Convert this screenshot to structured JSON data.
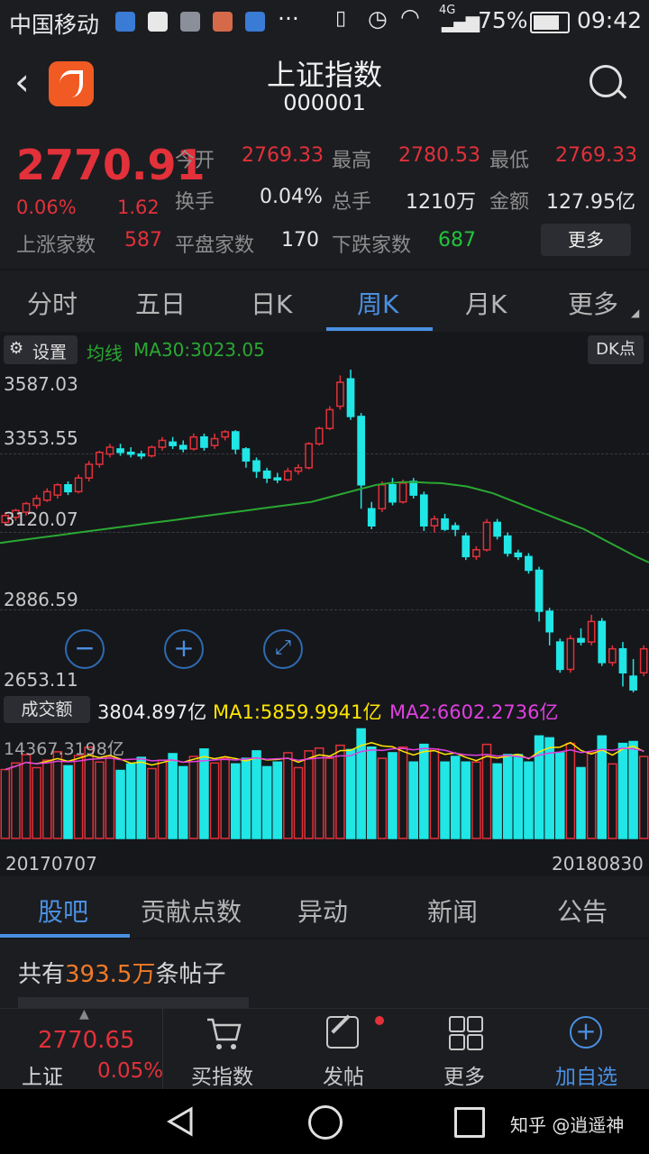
{
  "status": {
    "carrier": "中国移动",
    "battery": "75%",
    "time": "09:42",
    "network": "4G"
  },
  "header": {
    "title": "上证指数",
    "code": "000001"
  },
  "quote": {
    "price": "2770.91",
    "pct": "0.06%",
    "chg": "1.62",
    "open_lbl": "今开",
    "open": "2769.33",
    "high_lbl": "最高",
    "high": "2780.53",
    "low_lbl": "最低",
    "low": "2769.33",
    "turn_lbl": "换手",
    "turn": "0.04%",
    "hand_lbl": "总手",
    "hand": "1210万",
    "amt_lbl": "金额",
    "amt": "127.95亿",
    "up_lbl": "上涨家数",
    "up": "587",
    "flat_lbl": "平盘家数",
    "flat": "170",
    "down_lbl": "下跌家数",
    "down": "687",
    "more": "更多"
  },
  "tabs": [
    "分时",
    "五日",
    "日K",
    "周K",
    "月K",
    "更多"
  ],
  "chart_header": {
    "settings": "设置",
    "ma_label": "均线",
    "ma": "MA30:3023.05",
    "dk": "DK点"
  },
  "price_axis": [
    "3587.03",
    "3353.55",
    "3120.07",
    "2886.59",
    "2653.11"
  ],
  "volume_header": {
    "label": "成交额",
    "value": "3804.897亿",
    "ma1": "MA1:5859.9941亿",
    "ma2": "MA2:6602.2736亿",
    "max": "14367.3198亿"
  },
  "date_range": {
    "start": "20170707",
    "end": "20180830"
  },
  "bottom_tabs": [
    "股吧",
    "贡献点数",
    "异动",
    "新闻",
    "公告"
  ],
  "posts": {
    "prefix": "共有",
    "count": "393.5万",
    "suffix": "条帖子"
  },
  "toolbar": {
    "price": "2770.65",
    "name": "上证",
    "pct": "0.05%",
    "buy": "买指数",
    "post": "发帖",
    "more": "更多",
    "add": "加自选"
  },
  "watermark": "知乎 @逍遥神",
  "colors": {
    "up": "#e2313a",
    "down": "#21e6e6",
    "ma30": "#2aa832",
    "ma1": "#ffe600",
    "ma2": "#e040e0",
    "accent": "#4a90e2"
  },
  "chart_data": {
    "type": "candlestick",
    "ylim": [
      2653.11,
      3587.03
    ],
    "ma_line": [
      3080,
      3085,
      3090,
      3095,
      3100,
      3105,
      3110,
      3115,
      3120,
      3125,
      3130,
      3135,
      3140,
      3145,
      3150,
      3155,
      3160,
      3165,
      3170,
      3175,
      3180,
      3185,
      3190,
      3195,
      3200,
      3210,
      3220,
      3230,
      3240,
      3250,
      3255,
      3258,
      3258,
      3256,
      3255,
      3250,
      3245,
      3235,
      3225,
      3210,
      3195,
      3180,
      3165,
      3150,
      3135,
      3120,
      3100,
      3080,
      3060,
      3040,
      3023
    ],
    "candles": [
      [
        3140,
        3160,
        3170,
        3130
      ],
      [
        3155,
        3175,
        3180,
        3145
      ],
      [
        3170,
        3195,
        3200,
        3160
      ],
      [
        3190,
        3210,
        3220,
        3180
      ],
      [
        3205,
        3230,
        3240,
        3200
      ],
      [
        3220,
        3250,
        3255,
        3210
      ],
      [
        3250,
        3230,
        3260,
        3220
      ],
      [
        3230,
        3270,
        3280,
        3225
      ],
      [
        3270,
        3310,
        3320,
        3260
      ],
      [
        3310,
        3345,
        3350,
        3300
      ],
      [
        3340,
        3360,
        3370,
        3330
      ],
      [
        3355,
        3345,
        3370,
        3335
      ],
      [
        3345,
        3340,
        3360,
        3330
      ],
      [
        3340,
        3335,
        3350,
        3325
      ],
      [
        3335,
        3360,
        3365,
        3330
      ],
      [
        3360,
        3380,
        3390,
        3350
      ],
      [
        3375,
        3365,
        3390,
        3355
      ],
      [
        3365,
        3355,
        3380,
        3345
      ],
      [
        3355,
        3390,
        3400,
        3350
      ],
      [
        3390,
        3360,
        3400,
        3350
      ],
      [
        3365,
        3385,
        3400,
        3355
      ],
      [
        3390,
        3405,
        3410,
        3380
      ],
      [
        3405,
        3355,
        3410,
        3340
      ],
      [
        3355,
        3320,
        3360,
        3300
      ],
      [
        3320,
        3290,
        3330,
        3270
      ],
      [
        3290,
        3270,
        3300,
        3255
      ],
      [
        3270,
        3265,
        3285,
        3255
      ],
      [
        3265,
        3290,
        3300,
        3260
      ],
      [
        3290,
        3300,
        3310,
        3280
      ],
      [
        3300,
        3370,
        3375,
        3295
      ],
      [
        3370,
        3415,
        3420,
        3365
      ],
      [
        3415,
        3470,
        3480,
        3410
      ],
      [
        3480,
        3550,
        3570,
        3470
      ],
      [
        3560,
        3450,
        3587,
        3440
      ],
      [
        3450,
        3250,
        3460,
        3180
      ],
      [
        3180,
        3130,
        3200,
        3120
      ],
      [
        3180,
        3250,
        3260,
        3170
      ],
      [
        3250,
        3200,
        3270,
        3190
      ],
      [
        3200,
        3255,
        3265,
        3195
      ],
      [
        3260,
        3220,
        3270,
        3210
      ],
      [
        3220,
        3130,
        3230,
        3115
      ],
      [
        3130,
        3150,
        3160,
        3110
      ],
      [
        3150,
        3120,
        3165,
        3115
      ],
      [
        3130,
        3120,
        3140,
        3100
      ],
      [
        3100,
        3040,
        3110,
        3030
      ],
      [
        3040,
        3060,
        3070,
        3030
      ],
      [
        3060,
        3140,
        3150,
        3055
      ],
      [
        3140,
        3100,
        3150,
        3090
      ],
      [
        3100,
        3050,
        3110,
        3040
      ],
      [
        3050,
        3040,
        3060,
        3030
      ],
      [
        3040,
        3000,
        3050,
        2990
      ],
      [
        3000,
        2880,
        3010,
        2850
      ],
      [
        2880,
        2820,
        2890,
        2780
      ],
      [
        2790,
        2710,
        2800,
        2700
      ],
      [
        2710,
        2800,
        2810,
        2700
      ],
      [
        2800,
        2790,
        2830,
        2780
      ],
      [
        2790,
        2850,
        2870,
        2780
      ],
      [
        2850,
        2730,
        2860,
        2720
      ],
      [
        2730,
        2770,
        2780,
        2720
      ],
      [
        2770,
        2700,
        2790,
        2660
      ],
      [
        2690,
        2650,
        2740,
        2640
      ],
      [
        2700,
        2770,
        2780,
        2690
      ]
    ]
  }
}
